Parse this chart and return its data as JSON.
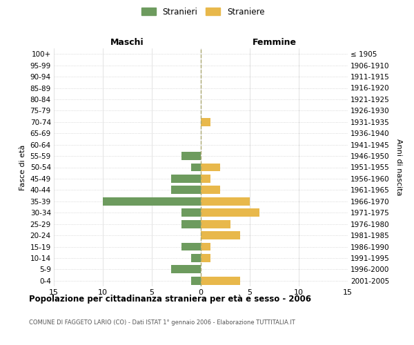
{
  "age_groups": [
    "100+",
    "95-99",
    "90-94",
    "85-89",
    "80-84",
    "75-79",
    "70-74",
    "65-69",
    "60-64",
    "55-59",
    "50-54",
    "45-49",
    "40-44",
    "35-39",
    "30-34",
    "25-29",
    "20-24",
    "15-19",
    "10-14",
    "5-9",
    "0-4"
  ],
  "birth_years": [
    "≤ 1905",
    "1906-1910",
    "1911-1915",
    "1916-1920",
    "1921-1925",
    "1926-1930",
    "1931-1935",
    "1936-1940",
    "1941-1945",
    "1946-1950",
    "1951-1955",
    "1956-1960",
    "1961-1965",
    "1966-1970",
    "1971-1975",
    "1976-1980",
    "1981-1985",
    "1986-1990",
    "1991-1995",
    "1996-2000",
    "2001-2005"
  ],
  "maschi": [
    0,
    0,
    0,
    0,
    0,
    0,
    0,
    0,
    0,
    2,
    1,
    3,
    3,
    10,
    2,
    2,
    0,
    2,
    1,
    3,
    1
  ],
  "femmine": [
    0,
    0,
    0,
    0,
    0,
    0,
    1,
    0,
    0,
    0,
    2,
    1,
    2,
    5,
    6,
    3,
    4,
    1,
    1,
    0,
    4
  ],
  "color_maschi": "#6d9b5e",
  "color_femmine": "#e8b84b",
  "title": "Popolazione per cittadinanza straniera per età e sesso - 2006",
  "subtitle": "COMUNE DI FAGGETO LARIO (CO) - Dati ISTAT 1° gennaio 2006 - Elaborazione TUTTITALIA.IT",
  "ylabel_left": "Fasce di età",
  "ylabel_right": "Anni di nascita",
  "header_left": "Maschi",
  "header_right": "Femmine",
  "legend_maschi": "Stranieri",
  "legend_femmine": "Straniere",
  "xlim": 15,
  "background_color": "#ffffff",
  "grid_color": "#cccccc",
  "grid_color_x": "#bbbbbb"
}
